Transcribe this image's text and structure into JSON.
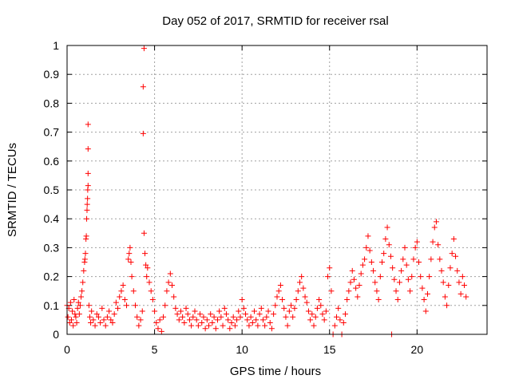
{
  "chart_data": {
    "type": "scatter",
    "title": "Day 052 of 2017, SRMTID for receiver rsal",
    "xlabel": "GPS time / hours",
    "ylabel": "SRMTID / TECUs",
    "xlim": [
      0,
      24
    ],
    "ylim": [
      0,
      1
    ],
    "xticks": [
      {
        "value": 0,
        "label": "0"
      },
      {
        "value": 5,
        "label": "5"
      },
      {
        "value": 10,
        "label": "10"
      },
      {
        "value": 15,
        "label": "15"
      },
      {
        "value": 20,
        "label": "20"
      }
    ],
    "yticks": [
      {
        "value": 0,
        "label": "0"
      },
      {
        "value": 0.1,
        "label": "0.1"
      },
      {
        "value": 0.2,
        "label": "0.2"
      },
      {
        "value": 0.3,
        "label": "0.3"
      },
      {
        "value": 0.4,
        "label": "0.4"
      },
      {
        "value": 0.5,
        "label": "0.5"
      },
      {
        "value": 0.6,
        "label": "0.6"
      },
      {
        "value": 0.7,
        "label": "0.7"
      },
      {
        "value": 0.8,
        "label": "0.8"
      },
      {
        "value": 0.9,
        "label": "0.9"
      },
      {
        "value": 1,
        "label": "1"
      }
    ],
    "grid": true,
    "marker": "plus",
    "color": "#ff0000",
    "series": [
      {
        "name": "SRMTID",
        "points": [
          [
            0.0,
            0.1
          ],
          [
            0.05,
            0.06
          ],
          [
            0.1,
            0.09
          ],
          [
            0.15,
            0.04
          ],
          [
            0.2,
            0.11
          ],
          [
            0.25,
            0.05
          ],
          [
            0.3,
            0.08
          ],
          [
            0.35,
            0.03
          ],
          [
            0.4,
            0.12
          ],
          [
            0.45,
            0.07
          ],
          [
            0.5,
            0.06
          ],
          [
            0.55,
            0.04
          ],
          [
            0.6,
            0.09
          ],
          [
            0.65,
            0.11
          ],
          [
            0.7,
            0.07
          ],
          [
            0.75,
            0.1
          ],
          [
            0.8,
            0.13
          ],
          [
            0.85,
            0.15
          ],
          [
            0.9,
            0.18
          ],
          [
            0.95,
            0.22
          ],
          [
            1.0,
            0.25
          ],
          [
            1.02,
            0.26
          ],
          [
            1.05,
            0.28
          ],
          [
            1.08,
            0.33
          ],
          [
            1.1,
            0.34
          ],
          [
            1.12,
            0.4
          ],
          [
            1.14,
            0.43
          ],
          [
            1.15,
            0.45
          ],
          [
            1.17,
            0.47
          ],
          [
            1.18,
            0.5
          ],
          [
            1.2,
            0.515
          ],
          [
            1.2,
            0.557
          ],
          [
            1.2,
            0.642
          ],
          [
            1.2,
            0.727
          ],
          [
            1.25,
            0.1
          ],
          [
            1.3,
            0.06
          ],
          [
            1.35,
            0.04
          ],
          [
            1.4,
            0.08
          ],
          [
            1.5,
            0.05
          ],
          [
            1.6,
            0.03
          ],
          [
            1.7,
            0.07
          ],
          [
            1.8,
            0.06
          ],
          [
            1.9,
            0.04
          ],
          [
            2.0,
            0.09
          ],
          [
            2.1,
            0.05
          ],
          [
            2.2,
            0.03
          ],
          [
            2.3,
            0.06
          ],
          [
            2.4,
            0.08
          ],
          [
            2.5,
            0.05
          ],
          [
            2.6,
            0.04
          ],
          [
            2.7,
            0.07
          ],
          [
            2.8,
            0.11
          ],
          [
            2.9,
            0.09
          ],
          [
            3.0,
            0.13
          ],
          [
            3.1,
            0.15
          ],
          [
            3.2,
            0.17
          ],
          [
            3.3,
            0.12
          ],
          [
            3.4,
            0.1
          ],
          [
            3.5,
            0.26
          ],
          [
            3.55,
            0.28
          ],
          [
            3.6,
            0.3
          ],
          [
            3.65,
            0.25
          ],
          [
            3.7,
            0.2
          ],
          [
            3.8,
            0.15
          ],
          [
            3.9,
            0.1
          ],
          [
            4.0,
            0.06
          ],
          [
            4.1,
            0.03
          ],
          [
            4.2,
            0.05
          ],
          [
            4.3,
            0.08
          ],
          [
            4.35,
            0.695
          ],
          [
            4.35,
            0.857
          ],
          [
            4.4,
            0.99
          ],
          [
            4.4,
            0.35
          ],
          [
            4.45,
            0.28
          ],
          [
            4.5,
            0.24
          ],
          [
            4.55,
            0.2
          ],
          [
            4.6,
            0.23
          ],
          [
            4.7,
            0.18
          ],
          [
            4.8,
            0.15
          ],
          [
            4.9,
            0.12
          ],
          [
            5.0,
            0.08
          ],
          [
            5.1,
            0.04
          ],
          [
            5.2,
            0.02
          ],
          [
            5.3,
            0.05
          ],
          [
            5.4,
            0.01
          ],
          [
            5.5,
            0.06
          ],
          [
            5.6,
            0.1
          ],
          [
            5.7,
            0.15
          ],
          [
            5.8,
            0.18
          ],
          [
            5.9,
            0.21
          ],
          [
            6.0,
            0.17
          ],
          [
            6.1,
            0.13
          ],
          [
            6.2,
            0.09
          ],
          [
            6.3,
            0.07
          ],
          [
            6.4,
            0.05
          ],
          [
            6.5,
            0.08
          ],
          [
            6.6,
            0.06
          ],
          [
            6.7,
            0.04
          ],
          [
            6.8,
            0.09
          ],
          [
            6.9,
            0.07
          ],
          [
            7.0,
            0.05
          ],
          [
            7.1,
            0.03
          ],
          [
            7.2,
            0.06
          ],
          [
            7.3,
            0.08
          ],
          [
            7.4,
            0.05
          ],
          [
            7.5,
            0.03
          ],
          [
            7.6,
            0.07
          ],
          [
            7.7,
            0.04
          ],
          [
            7.8,
            0.06
          ],
          [
            7.9,
            0.02
          ],
          [
            8.0,
            0.05
          ],
          [
            8.1,
            0.03
          ],
          [
            8.2,
            0.07
          ],
          [
            8.3,
            0.04
          ],
          [
            8.4,
            0.06
          ],
          [
            8.5,
            0.02
          ],
          [
            8.6,
            0.05
          ],
          [
            8.7,
            0.08
          ],
          [
            8.8,
            0.06
          ],
          [
            8.9,
            0.03
          ],
          [
            9.0,
            0.09
          ],
          [
            9.1,
            0.07
          ],
          [
            9.2,
            0.05
          ],
          [
            9.3,
            0.02
          ],
          [
            9.4,
            0.04
          ],
          [
            9.5,
            0.06
          ],
          [
            9.6,
            0.03
          ],
          [
            9.7,
            0.05
          ],
          [
            9.8,
            0.08
          ],
          [
            9.9,
            0.06
          ],
          [
            10.0,
            0.12
          ],
          [
            10.1,
            0.09
          ],
          [
            10.2,
            0.07
          ],
          [
            10.3,
            0.05
          ],
          [
            10.4,
            0.03
          ],
          [
            10.5,
            0.06
          ],
          [
            10.6,
            0.04
          ],
          [
            10.7,
            0.08
          ],
          [
            10.8,
            0.05
          ],
          [
            10.9,
            0.03
          ],
          [
            11.0,
            0.07
          ],
          [
            11.1,
            0.09
          ],
          [
            11.2,
            0.05
          ],
          [
            11.3,
            0.03
          ],
          [
            11.4,
            0.06
          ],
          [
            11.5,
            0.08
          ],
          [
            11.6,
            0.04
          ],
          [
            11.7,
            0.02
          ],
          [
            11.8,
            0.07
          ],
          [
            11.9,
            0.1
          ],
          [
            12.0,
            0.13
          ],
          [
            12.1,
            0.15
          ],
          [
            12.2,
            0.17
          ],
          [
            12.3,
            0.12
          ],
          [
            12.4,
            0.09
          ],
          [
            12.5,
            0.06
          ],
          [
            12.6,
            0.03
          ],
          [
            12.7,
            0.08
          ],
          [
            12.8,
            0.1
          ],
          [
            12.9,
            0.06
          ],
          [
            13.0,
            0.09
          ],
          [
            13.1,
            0.12
          ],
          [
            13.2,
            0.15
          ],
          [
            13.3,
            0.18
          ],
          [
            13.4,
            0.2
          ],
          [
            13.5,
            0.16
          ],
          [
            13.6,
            0.13
          ],
          [
            13.7,
            0.11
          ],
          [
            13.8,
            0.08
          ],
          [
            13.9,
            0.05
          ],
          [
            14.0,
            0.07
          ],
          [
            14.1,
            0.03
          ],
          [
            14.2,
            0.06
          ],
          [
            14.3,
            0.09
          ],
          [
            14.4,
            0.12
          ],
          [
            14.5,
            0.1
          ],
          [
            14.6,
            0.07
          ],
          [
            14.7,
            0.05
          ],
          [
            14.8,
            0.08
          ],
          [
            14.9,
            0.2
          ],
          [
            15.0,
            0.23
          ],
          [
            15.1,
            0.15
          ],
          [
            15.2,
            0.0
          ],
          [
            15.3,
            0.03
          ],
          [
            15.4,
            0.06
          ],
          [
            15.5,
            0.09
          ],
          [
            15.6,
            0.05
          ],
          [
            15.7,
            0.0
          ],
          [
            15.8,
            0.04
          ],
          [
            15.9,
            0.07
          ],
          [
            16.0,
            0.12
          ],
          [
            16.1,
            0.15
          ],
          [
            16.2,
            0.18
          ],
          [
            16.3,
            0.22
          ],
          [
            16.4,
            0.19
          ],
          [
            16.5,
            0.16
          ],
          [
            16.6,
            0.13
          ],
          [
            16.7,
            0.17
          ],
          [
            16.8,
            0.21
          ],
          [
            16.9,
            0.24
          ],
          [
            17.0,
            0.26
          ],
          [
            17.1,
            0.3
          ],
          [
            17.2,
            0.34
          ],
          [
            17.3,
            0.29
          ],
          [
            17.4,
            0.25
          ],
          [
            17.5,
            0.22
          ],
          [
            17.6,
            0.18
          ],
          [
            17.7,
            0.15
          ],
          [
            17.8,
            0.12
          ],
          [
            17.9,
            0.2
          ],
          [
            18.0,
            0.25
          ],
          [
            18.1,
            0.28
          ],
          [
            18.2,
            0.33
          ],
          [
            18.3,
            0.37
          ],
          [
            18.4,
            0.31
          ],
          [
            18.5,
            0.27
          ],
          [
            18.55,
            0.0
          ],
          [
            18.6,
            0.23
          ],
          [
            18.7,
            0.19
          ],
          [
            18.8,
            0.15
          ],
          [
            18.9,
            0.12
          ],
          [
            19.0,
            0.18
          ],
          [
            19.1,
            0.22
          ],
          [
            19.2,
            0.26
          ],
          [
            19.3,
            0.3
          ],
          [
            19.4,
            0.24
          ],
          [
            19.5,
            0.19
          ],
          [
            19.6,
            0.15
          ],
          [
            19.7,
            0.2
          ],
          [
            19.8,
            0.26
          ],
          [
            19.9,
            0.3
          ],
          [
            20.0,
            0.32
          ],
          [
            20.1,
            0.25
          ],
          [
            20.2,
            0.2
          ],
          [
            20.3,
            0.16
          ],
          [
            20.4,
            0.12
          ],
          [
            20.5,
            0.08
          ],
          [
            20.6,
            0.14
          ],
          [
            20.7,
            0.2
          ],
          [
            20.8,
            0.26
          ],
          [
            20.9,
            0.32
          ],
          [
            21.0,
            0.37
          ],
          [
            21.1,
            0.39
          ],
          [
            21.2,
            0.31
          ],
          [
            21.3,
            0.26
          ],
          [
            21.4,
            0.22
          ],
          [
            21.5,
            0.18
          ],
          [
            21.6,
            0.13
          ],
          [
            21.7,
            0.1
          ],
          [
            21.8,
            0.17
          ],
          [
            21.9,
            0.23
          ],
          [
            22.0,
            0.28
          ],
          [
            22.1,
            0.33
          ],
          [
            22.2,
            0.27
          ],
          [
            22.3,
            0.22
          ],
          [
            22.4,
            0.18
          ],
          [
            22.5,
            0.14
          ],
          [
            22.6,
            0.2
          ],
          [
            22.7,
            0.17
          ],
          [
            22.8,
            0.13
          ]
        ]
      }
    ]
  }
}
